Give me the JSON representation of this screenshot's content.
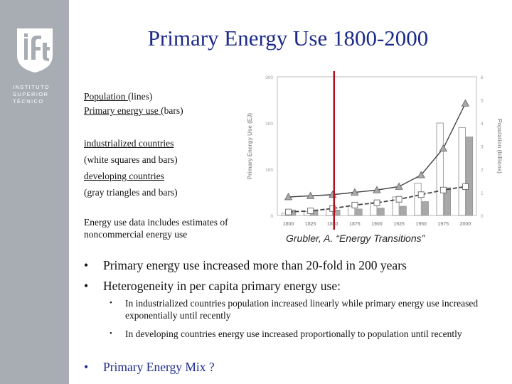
{
  "slide": {
    "title": "Primary Energy Use 1800-2000",
    "logo": {
      "text": "ist",
      "institution_lines": [
        "INSTITUTO",
        "SUPERIOR",
        "TÉCNICO"
      ]
    },
    "legend_lines": {
      "population": {
        "underlined": "Population ",
        "rest": "(lines)"
      },
      "energy": {
        "underlined": "Primary energy use ",
        "rest": "(bars)"
      },
      "industrialized": "industrialized countries",
      "industrialized_desc": "(white squares and bars)",
      "developing": "developing  countries",
      "developing_desc": "(gray triangles and bars)"
    },
    "note": "Energy use data includes estimates of noncommercial energy use",
    "citation": "Grubler, A. “Energy Transitions”",
    "bullets": [
      {
        "text": "Primary energy use increased more than 20-fold in 200 years"
      },
      {
        "text": "Heterogeneity in per capita primary energy use:"
      }
    ],
    "sub_bullets": [
      {
        "text": "In industrialized countries population increased linearly while primary energy use increased exponentially until recently"
      },
      {
        "text": "In developing countries energy use increased proportionally to population until recently"
      }
    ],
    "final_bullet": "Primary Energy Mix ?",
    "bullet_glyph": "•"
  },
  "colors": {
    "sidebar": "#a8acb3",
    "title": "#1c2a8a",
    "marker_line": "#b0121b",
    "industrial_bar": "#ffffff",
    "developing_bar": "#a8a8a8"
  },
  "chart_data": {
    "type": "bar",
    "categories": [
      "1800",
      "1825",
      "1850",
      "1875",
      "1900",
      "1925",
      "1950",
      "1975",
      "2000"
    ],
    "ylabel": "Primary Energy Use (EJ)",
    "y2label": "Population (billions)",
    "ylim": [
      0,
      300
    ],
    "y2lim": [
      0,
      6
    ],
    "yticks": [
      "0",
      "100",
      "200",
      "300"
    ],
    "y2ticks": [
      "0",
      "1",
      "2",
      "3",
      "4",
      "5",
      "6"
    ],
    "marker_at": "1850",
    "series": [
      {
        "name": "industrialized countries",
        "kind": "bar",
        "values": [
          5,
          8,
          14,
          20,
          28,
          40,
          70,
          200,
          190
        ]
      },
      {
        "name": "developing countries",
        "kind": "bar",
        "values": [
          12,
          12,
          12,
          14,
          16,
          20,
          30,
          60,
          170
        ]
      },
      {
        "name": "industrialized countries",
        "kind": "line",
        "axis": "y2",
        "marker": "square",
        "values": [
          0.15,
          0.2,
          0.3,
          0.45,
          0.55,
          0.7,
          0.9,
          1.1,
          1.25
        ]
      },
      {
        "name": "developing countries",
        "kind": "line",
        "axis": "y2",
        "marker": "triangle",
        "values": [
          0.8,
          0.85,
          0.9,
          1.0,
          1.1,
          1.25,
          1.75,
          2.9,
          4.85
        ]
      }
    ]
  }
}
